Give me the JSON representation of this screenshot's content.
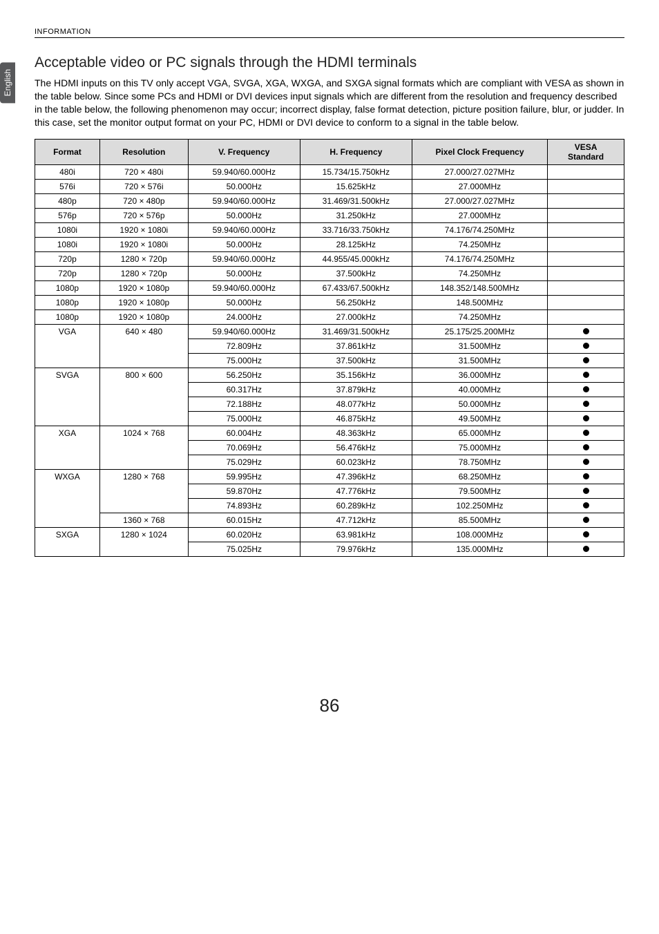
{
  "header": {
    "section_label": "INFORMATION",
    "lang_tab": "English"
  },
  "section": {
    "title": "Acceptable video or PC signals through the HDMI terminals",
    "intro": "The HDMI inputs on this TV only accept VGA, SVGA, XGA, WXGA, and SXGA signal formats which are compliant with VESA as shown in the table below. Since some PCs and HDMI or DVI devices input signals which are different from the resolution and frequency described in the table below, the following phenomenon may occur; incorrect display, false format detection, picture position failure, blur, or judder. In this case, set the monitor output format on your PC, HDMI or DVI device to conform to a signal in the table below."
  },
  "table": {
    "columns": [
      "Format",
      "Resolution",
      "V. Frequency",
      "H. Frequency",
      "Pixel Clock Frequency",
      "VESA Standard"
    ],
    "col_widths": [
      "11%",
      "15%",
      "19%",
      "19%",
      "23%",
      "13%"
    ],
    "header_bg": "#dcdcdc",
    "rows": [
      {
        "fmt": "480i",
        "res": "720 × 480i",
        "vf": "59.940/60.000Hz",
        "hf": "15.734/15.750kHz",
        "pcf": "27.000/27.027MHz",
        "vesa": false
      },
      {
        "fmt": "576i",
        "res": "720 × 576i",
        "vf": "50.000Hz",
        "hf": "15.625kHz",
        "pcf": "27.000MHz",
        "vesa": false
      },
      {
        "fmt": "480p",
        "res": "720 × 480p",
        "vf": "59.940/60.000Hz",
        "hf": "31.469/31.500kHz",
        "pcf": "27.000/27.027MHz",
        "vesa": false
      },
      {
        "fmt": "576p",
        "res": "720 × 576p",
        "vf": "50.000Hz",
        "hf": "31.250kHz",
        "pcf": "27.000MHz",
        "vesa": false
      },
      {
        "fmt": "1080i",
        "res": "1920 × 1080i",
        "vf": "59.940/60.000Hz",
        "hf": "33.716/33.750kHz",
        "pcf": "74.176/74.250MHz",
        "vesa": false
      },
      {
        "fmt": "1080i",
        "res": "1920 × 1080i",
        "vf": "50.000Hz",
        "hf": "28.125kHz",
        "pcf": "74.250MHz",
        "vesa": false
      },
      {
        "fmt": "720p",
        "res": "1280 × 720p",
        "vf": "59.940/60.000Hz",
        "hf": "44.955/45.000kHz",
        "pcf": "74.176/74.250MHz",
        "vesa": false
      },
      {
        "fmt": "720p",
        "res": "1280 × 720p",
        "vf": "50.000Hz",
        "hf": "37.500kHz",
        "pcf": "74.250MHz",
        "vesa": false
      },
      {
        "fmt": "1080p",
        "res": "1920 × 1080p",
        "vf": "59.940/60.000Hz",
        "hf": "67.433/67.500kHz",
        "pcf": "148.352/148.500MHz",
        "vesa": false
      },
      {
        "fmt": "1080p",
        "res": "1920 × 1080p",
        "vf": "50.000Hz",
        "hf": "56.250kHz",
        "pcf": "148.500MHz",
        "vesa": false
      },
      {
        "fmt": "1080p",
        "res": "1920 × 1080p",
        "vf": "24.000Hz",
        "hf": "27.000kHz",
        "pcf": "74.250MHz",
        "vesa": false
      },
      {
        "fmt": "VGA",
        "res": "640 × 480",
        "vf": "59.940/60.000Hz",
        "hf": "31.469/31.500kHz",
        "pcf": "25.175/25.200MHz",
        "vesa": true,
        "span_fmt": 3,
        "span_res": 3
      },
      {
        "fmt": "",
        "res": "",
        "vf": "72.809Hz",
        "hf": "37.861kHz",
        "pcf": "31.500MHz",
        "vesa": true
      },
      {
        "fmt": "",
        "res": "",
        "vf": "75.000Hz",
        "hf": "37.500kHz",
        "pcf": "31.500MHz",
        "vesa": true
      },
      {
        "fmt": "SVGA",
        "res": "800 × 600",
        "vf": "56.250Hz",
        "hf": "35.156kHz",
        "pcf": "36.000MHz",
        "vesa": true,
        "span_fmt": 4,
        "span_res": 4
      },
      {
        "fmt": "",
        "res": "",
        "vf": "60.317Hz",
        "hf": "37.879kHz",
        "pcf": "40.000MHz",
        "vesa": true
      },
      {
        "fmt": "",
        "res": "",
        "vf": "72.188Hz",
        "hf": "48.077kHz",
        "pcf": "50.000MHz",
        "vesa": true
      },
      {
        "fmt": "",
        "res": "",
        "vf": "75.000Hz",
        "hf": "46.875kHz",
        "pcf": "49.500MHz",
        "vesa": true
      },
      {
        "fmt": "XGA",
        "res": "1024 × 768",
        "vf": "60.004Hz",
        "hf": "48.363kHz",
        "pcf": "65.000MHz",
        "vesa": true,
        "span_fmt": 3,
        "span_res": 3
      },
      {
        "fmt": "",
        "res": "",
        "vf": "70.069Hz",
        "hf": "56.476kHz",
        "pcf": "75.000MHz",
        "vesa": true
      },
      {
        "fmt": "",
        "res": "",
        "vf": "75.029Hz",
        "hf": "60.023kHz",
        "pcf": "78.750MHz",
        "vesa": true
      },
      {
        "fmt": "WXGA",
        "res": "1280 × 768",
        "vf": "59.995Hz",
        "hf": "47.396kHz",
        "pcf": "68.250MHz",
        "vesa": true,
        "span_fmt": 4,
        "span_res": 3
      },
      {
        "fmt": "",
        "res": "",
        "vf": "59.870Hz",
        "hf": "47.776kHz",
        "pcf": "79.500MHz",
        "vesa": true
      },
      {
        "fmt": "",
        "res": "",
        "vf": "74.893Hz",
        "hf": "60.289kHz",
        "pcf": "102.250MHz",
        "vesa": true
      },
      {
        "fmt": "",
        "res": "1360 × 768",
        "vf": "60.015Hz",
        "hf": "47.712kHz",
        "pcf": "85.500MHz",
        "vesa": true,
        "span_res": 1
      },
      {
        "fmt": "SXGA",
        "res": "1280 × 1024",
        "vf": "60.020Hz",
        "hf": "63.981kHz",
        "pcf": "108.000MHz",
        "vesa": true,
        "span_fmt": 2,
        "span_res": 2
      },
      {
        "fmt": "",
        "res": "",
        "vf": "75.025Hz",
        "hf": "79.976kHz",
        "pcf": "135.000MHz",
        "vesa": true
      }
    ]
  },
  "footer": {
    "page_number": "86"
  }
}
